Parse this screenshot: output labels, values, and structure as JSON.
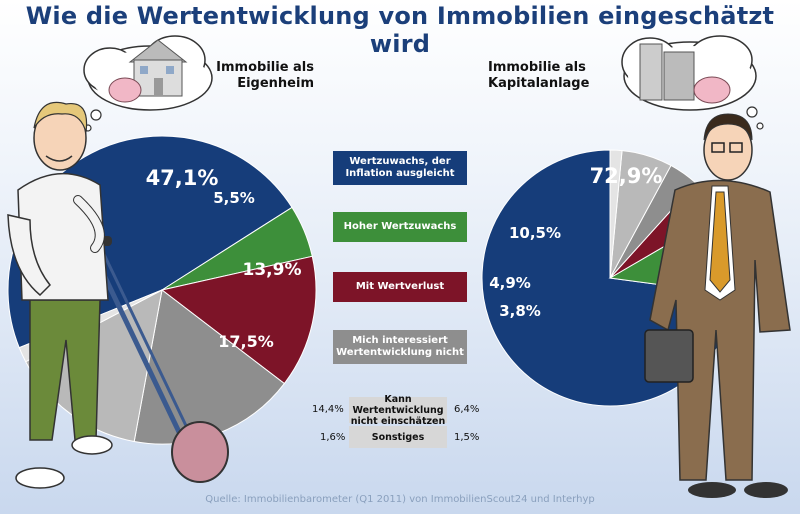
{
  "title": "Wie die Wertentwicklung von Immobilien eingeschätzt wird",
  "source": "Quelle: Immobilienbarometer (Q1 2011) von ImmobilienScout24 und Interhyp",
  "categories": [
    {
      "label": "Wertzuwachs, der Inflation ausgleicht",
      "color": "#163d7a"
    },
    {
      "label": "Hoher Wertzuwachs",
      "color": "#3d8f3a"
    },
    {
      "label": "Mit Wertverlust",
      "color": "#7d1428"
    },
    {
      "label": "Mich interessiert Wertentwicklung nicht",
      "color": "#8e8e8e"
    }
  ],
  "small_categories": [
    {
      "label": "Kann Wertentwicklung nicht einschätzen",
      "left_value": "14,4%",
      "right_value": "6,4%"
    },
    {
      "label": "Sonstiges",
      "left_value": "1,6%",
      "right_value": "1,5%"
    }
  ],
  "chart_data": [
    {
      "type": "pie",
      "title": "Immobilie als Eigenheim",
      "slices": [
        {
          "label": "Wertzuwachs, der Inflation ausgleicht",
          "value": 47.1,
          "display": "47,1%",
          "color": "#163d7a"
        },
        {
          "label": "Hoher Wertzuwachs",
          "value": 5.5,
          "display": "5,5%",
          "color": "#3d8f3a"
        },
        {
          "label": "Mit Wertverlust",
          "value": 13.9,
          "display": "13,9%",
          "color": "#7d1428"
        },
        {
          "label": "Mich interessiert Wertentwicklung nicht",
          "value": 17.5,
          "display": "17,5%",
          "color": "#8e8e8e"
        },
        {
          "label": "Kann Wertentwicklung nicht einschätzen",
          "value": 14.4,
          "display": "",
          "color": "#b9b9b9"
        },
        {
          "label": "Sonstiges",
          "value": 1.6,
          "display": "",
          "color": "#e4e4e4"
        }
      ]
    },
    {
      "type": "pie",
      "title": "Immobilie als Kapitalanlage",
      "slices": [
        {
          "label": "Wertzuwachs, der Inflation ausgleicht",
          "value": 72.9,
          "display": "72,9%",
          "color": "#163d7a"
        },
        {
          "label": "Hoher Wertzuwachs",
          "value": 10.5,
          "display": "10,5%",
          "color": "#3d8f3a"
        },
        {
          "label": "Mit Wertverlust",
          "value": 4.9,
          "display": "4,9%",
          "color": "#7d1428"
        },
        {
          "label": "Mich interessiert Wertentwicklung nicht",
          "value": 3.8,
          "display": "3,8%",
          "color": "#8e8e8e"
        },
        {
          "label": "Kann Wertentwicklung nicht einschätzen",
          "value": 6.4,
          "display": "",
          "color": "#b9b9b9"
        },
        {
          "label": "Sonstiges",
          "value": 1.5,
          "display": "",
          "color": "#e4e4e4"
        }
      ]
    }
  ]
}
